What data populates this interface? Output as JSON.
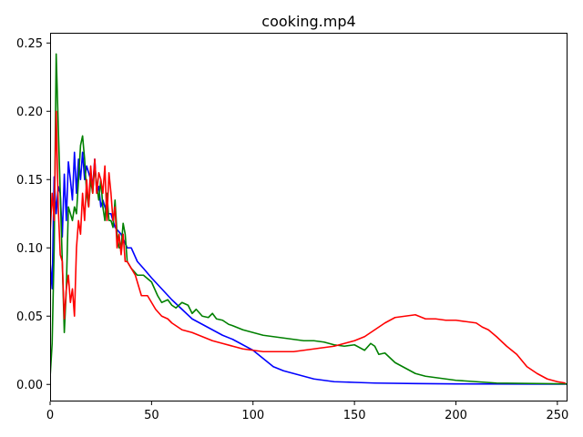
{
  "chart_data": {
    "type": "line",
    "title": "cooking.mp4",
    "xlabel": "",
    "ylabel": "",
    "xlim": [
      0,
      255
    ],
    "ylim": [
      -0.0125,
      0.2575
    ],
    "xticks": [
      0,
      50,
      100,
      150,
      200,
      250
    ],
    "xtick_labels": [
      "0",
      "50",
      "100",
      "150",
      "200",
      "250"
    ],
    "yticks": [
      0.0,
      0.05,
      0.1,
      0.15,
      0.2,
      0.25
    ],
    "ytick_labels": [
      "0.00",
      "0.05",
      "0.10",
      "0.15",
      "0.20",
      "0.25"
    ],
    "grid": false,
    "series": [
      {
        "color": "#0000ff",
        "points": [
          [
            0,
            0.09
          ],
          [
            1,
            0.07
          ],
          [
            2,
            0.152
          ],
          [
            3,
            0.125
          ],
          [
            4,
            0.145
          ],
          [
            5,
            0.14
          ],
          [
            6,
            0.108
          ],
          [
            7,
            0.154
          ],
          [
            8,
            0.12
          ],
          [
            9,
            0.163
          ],
          [
            10,
            0.15
          ],
          [
            11,
            0.135
          ],
          [
            12,
            0.17
          ],
          [
            13,
            0.14
          ],
          [
            14,
            0.165
          ],
          [
            15,
            0.15
          ],
          [
            16,
            0.17
          ],
          [
            17,
            0.15
          ],
          [
            18,
            0.16
          ],
          [
            19,
            0.155
          ],
          [
            20,
            0.15
          ],
          [
            21,
            0.145
          ],
          [
            22,
            0.165
          ],
          [
            23,
            0.14
          ],
          [
            24,
            0.145
          ],
          [
            25,
            0.13
          ],
          [
            26,
            0.135
          ],
          [
            27,
            0.13
          ],
          [
            28,
            0.125
          ],
          [
            30,
            0.125
          ],
          [
            32,
            0.115
          ],
          [
            35,
            0.11
          ],
          [
            38,
            0.1
          ],
          [
            40,
            0.1
          ],
          [
            43,
            0.09
          ],
          [
            46,
            0.085
          ],
          [
            50,
            0.078
          ],
          [
            55,
            0.07
          ],
          [
            60,
            0.062
          ],
          [
            65,
            0.055
          ],
          [
            70,
            0.048
          ],
          [
            75,
            0.044
          ],
          [
            80,
            0.04
          ],
          [
            85,
            0.036
          ],
          [
            90,
            0.033
          ],
          [
            95,
            0.029
          ],
          [
            100,
            0.025
          ],
          [
            105,
            0.019
          ],
          [
            110,
            0.013
          ],
          [
            115,
            0.01
          ],
          [
            120,
            0.008
          ],
          [
            125,
            0.006
          ],
          [
            130,
            0.004
          ],
          [
            140,
            0.002
          ],
          [
            150,
            0.0015
          ],
          [
            160,
            0.001
          ],
          [
            180,
            0.0006
          ],
          [
            200,
            0.0004
          ],
          [
            255,
            0.0002
          ]
        ]
      },
      {
        "color": "#008000",
        "points": [
          [
            0,
            0.005
          ],
          [
            1,
            0.03
          ],
          [
            2,
            0.1
          ],
          [
            3,
            0.242
          ],
          [
            4,
            0.19
          ],
          [
            5,
            0.14
          ],
          [
            6,
            0.09
          ],
          [
            7,
            0.038
          ],
          [
            8,
            0.07
          ],
          [
            9,
            0.13
          ],
          [
            10,
            0.125
          ],
          [
            11,
            0.12
          ],
          [
            12,
            0.13
          ],
          [
            13,
            0.125
          ],
          [
            14,
            0.15
          ],
          [
            15,
            0.175
          ],
          [
            16,
            0.182
          ],
          [
            17,
            0.165
          ],
          [
            18,
            0.14
          ],
          [
            19,
            0.13
          ],
          [
            20,
            0.15
          ],
          [
            21,
            0.14
          ],
          [
            22,
            0.16
          ],
          [
            23,
            0.145
          ],
          [
            24,
            0.135
          ],
          [
            25,
            0.15
          ],
          [
            26,
            0.13
          ],
          [
            27,
            0.12
          ],
          [
            28,
            0.14
          ],
          [
            29,
            0.12
          ],
          [
            30,
            0.12
          ],
          [
            31,
            0.115
          ],
          [
            32,
            0.135
          ],
          [
            33,
            0.11
          ],
          [
            34,
            0.1
          ],
          [
            35,
            0.1
          ],
          [
            36,
            0.118
          ],
          [
            37,
            0.11
          ],
          [
            38,
            0.09
          ],
          [
            40,
            0.085
          ],
          [
            43,
            0.08
          ],
          [
            46,
            0.08
          ],
          [
            50,
            0.075
          ],
          [
            53,
            0.065
          ],
          [
            55,
            0.06
          ],
          [
            58,
            0.062
          ],
          [
            60,
            0.058
          ],
          [
            62,
            0.056
          ],
          [
            65,
            0.06
          ],
          [
            68,
            0.058
          ],
          [
            70,
            0.052
          ],
          [
            72,
            0.055
          ],
          [
            75,
            0.05
          ],
          [
            78,
            0.049
          ],
          [
            80,
            0.052
          ],
          [
            82,
            0.048
          ],
          [
            85,
            0.047
          ],
          [
            88,
            0.044
          ],
          [
            90,
            0.043
          ],
          [
            95,
            0.04
          ],
          [
            100,
            0.038
          ],
          [
            105,
            0.036
          ],
          [
            110,
            0.035
          ],
          [
            115,
            0.034
          ],
          [
            120,
            0.033
          ],
          [
            125,
            0.032
          ],
          [
            130,
            0.032
          ],
          [
            135,
            0.031
          ],
          [
            140,
            0.029
          ],
          [
            145,
            0.028
          ],
          [
            150,
            0.029
          ],
          [
            155,
            0.025
          ],
          [
            158,
            0.03
          ],
          [
            160,
            0.028
          ],
          [
            162,
            0.022
          ],
          [
            165,
            0.023
          ],
          [
            170,
            0.016
          ],
          [
            175,
            0.012
          ],
          [
            180,
            0.008
          ],
          [
            185,
            0.006
          ],
          [
            190,
            0.005
          ],
          [
            195,
            0.004
          ],
          [
            200,
            0.003
          ],
          [
            210,
            0.002
          ],
          [
            220,
            0.001
          ],
          [
            255,
            0.0004
          ]
        ]
      },
      {
        "color": "#ff0000",
        "points": [
          [
            0,
            0.11
          ],
          [
            1,
            0.14
          ],
          [
            2,
            0.12
          ],
          [
            3,
            0.2
          ],
          [
            4,
            0.13
          ],
          [
            5,
            0.095
          ],
          [
            6,
            0.09
          ],
          [
            7,
            0.048
          ],
          [
            8,
            0.07
          ],
          [
            9,
            0.08
          ],
          [
            10,
            0.06
          ],
          [
            11,
            0.07
          ],
          [
            12,
            0.05
          ],
          [
            13,
            0.1
          ],
          [
            14,
            0.12
          ],
          [
            15,
            0.11
          ],
          [
            16,
            0.14
          ],
          [
            17,
            0.12
          ],
          [
            18,
            0.15
          ],
          [
            19,
            0.13
          ],
          [
            20,
            0.16
          ],
          [
            21,
            0.14
          ],
          [
            22,
            0.165
          ],
          [
            23,
            0.14
          ],
          [
            24,
            0.155
          ],
          [
            25,
            0.15
          ],
          [
            26,
            0.14
          ],
          [
            27,
            0.16
          ],
          [
            28,
            0.12
          ],
          [
            29,
            0.155
          ],
          [
            30,
            0.14
          ],
          [
            31,
            0.12
          ],
          [
            32,
            0.13
          ],
          [
            33,
            0.1
          ],
          [
            34,
            0.11
          ],
          [
            35,
            0.095
          ],
          [
            36,
            0.11
          ],
          [
            37,
            0.09
          ],
          [
            38,
            0.09
          ],
          [
            40,
            0.085
          ],
          [
            42,
            0.08
          ],
          [
            45,
            0.065
          ],
          [
            48,
            0.065
          ],
          [
            50,
            0.06
          ],
          [
            52,
            0.055
          ],
          [
            55,
            0.05
          ],
          [
            58,
            0.048
          ],
          [
            60,
            0.045
          ],
          [
            62,
            0.043
          ],
          [
            65,
            0.04
          ],
          [
            70,
            0.038
          ],
          [
            75,
            0.035
          ],
          [
            80,
            0.032
          ],
          [
            85,
            0.03
          ],
          [
            90,
            0.028
          ],
          [
            95,
            0.026
          ],
          [
            100,
            0.025
          ],
          [
            105,
            0.024
          ],
          [
            110,
            0.024
          ],
          [
            115,
            0.024
          ],
          [
            120,
            0.024
          ],
          [
            125,
            0.025
          ],
          [
            130,
            0.026
          ],
          [
            135,
            0.027
          ],
          [
            140,
            0.028
          ],
          [
            145,
            0.03
          ],
          [
            150,
            0.032
          ],
          [
            155,
            0.035
          ],
          [
            160,
            0.04
          ],
          [
            165,
            0.045
          ],
          [
            170,
            0.049
          ],
          [
            175,
            0.05
          ],
          [
            180,
            0.051
          ],
          [
            185,
            0.048
          ],
          [
            190,
            0.048
          ],
          [
            195,
            0.047
          ],
          [
            200,
            0.047
          ],
          [
            205,
            0.046
          ],
          [
            210,
            0.045
          ],
          [
            213,
            0.042
          ],
          [
            216,
            0.04
          ],
          [
            220,
            0.035
          ],
          [
            225,
            0.028
          ],
          [
            230,
            0.022
          ],
          [
            235,
            0.013
          ],
          [
            240,
            0.008
          ],
          [
            245,
            0.004
          ],
          [
            250,
            0.002
          ],
          [
            254,
            0.001
          ]
        ]
      }
    ]
  }
}
